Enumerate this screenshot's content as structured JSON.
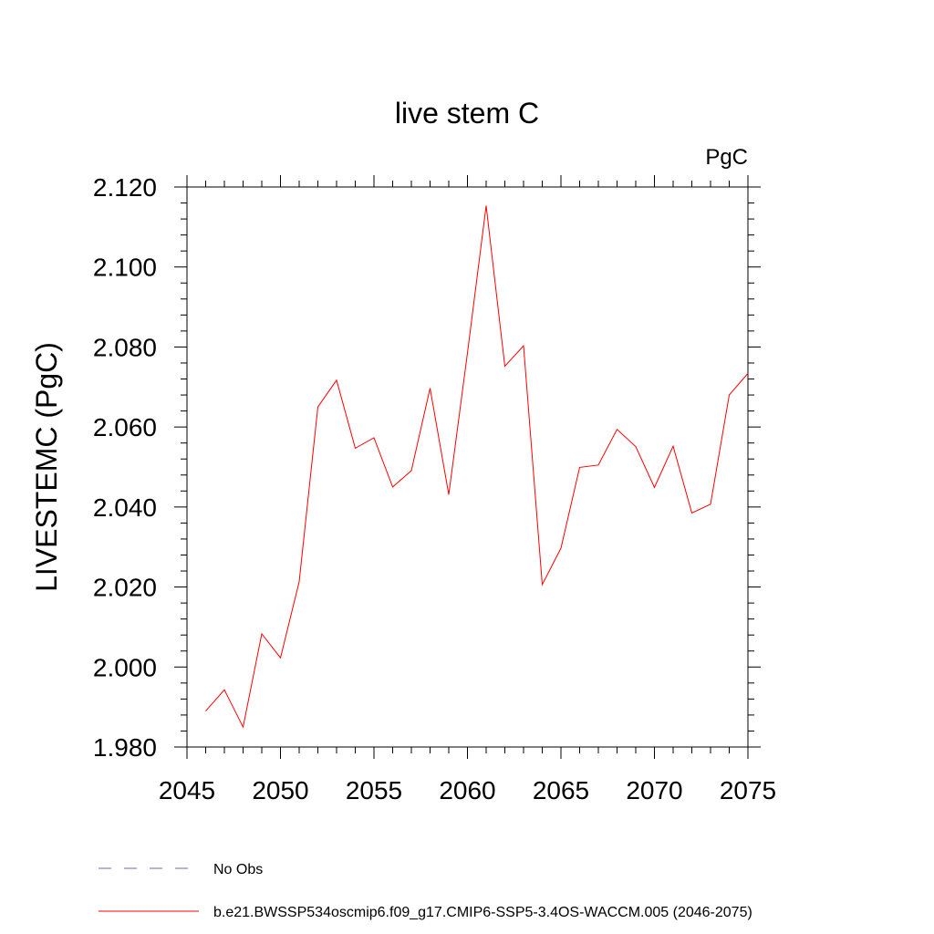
{
  "chart_data": {
    "type": "line",
    "title": "live stem C",
    "units": "PgC",
    "ylabel": "LIVESTEMC  (PgC)",
    "xlabel": "",
    "xlim": [
      2045,
      2075
    ],
    "ylim": [
      1.98,
      2.12
    ],
    "xticks": [
      2045,
      2050,
      2055,
      2060,
      2065,
      2070,
      2075
    ],
    "xtick_labels": [
      "2045",
      "2050",
      "2055",
      "2060",
      "2065",
      "2070",
      "2075"
    ],
    "yticks": [
      1.98,
      2.0,
      2.02,
      2.04,
      2.06,
      2.08,
      2.1,
      2.12
    ],
    "ytick_labels": [
      "1.980",
      "2.000",
      "2.020",
      "2.040",
      "2.060",
      "2.080",
      "2.100",
      "2.120"
    ],
    "grid": false,
    "series": [
      {
        "name": "b.e21.BWSSP534oscmip6.f09_g17.CMIP6-SSP5-3.4OS-WACCM.005 (2046-2075)",
        "color": "#ff0000",
        "x": [
          2046,
          2047,
          2048,
          2049,
          2050,
          2051,
          2052,
          2053,
          2054,
          2055,
          2056,
          2057,
          2058,
          2059,
          2060,
          2061,
          2062,
          2063,
          2064,
          2065,
          2066,
          2067,
          2068,
          2069,
          2070,
          2071,
          2072,
          2073,
          2074,
          2075
        ],
        "values": [
          1.989,
          1.9943,
          1.985,
          2.0083,
          2.0023,
          2.0213,
          2.065,
          2.0717,
          2.0547,
          2.0573,
          2.045,
          2.0491,
          2.0697,
          2.0431,
          2.0785,
          2.1153,
          2.0752,
          2.0803,
          2.0206,
          2.0297,
          2.0499,
          2.0505,
          2.0594,
          2.0551,
          2.0449,
          2.0552,
          2.0385,
          2.0407,
          2.068,
          2.0734
        ]
      }
    ],
    "legend": {
      "position": "bottom",
      "entries": [
        {
          "label": "No Obs",
          "style": "dashed",
          "color": "#6f6aa8"
        },
        {
          "label": "b.e21.BWSSP534oscmip6.f09_g17.CMIP6-SSP5-3.4OS-WACCM.005 (2046-2075)",
          "style": "solid",
          "color": "#ff0000"
        }
      ]
    }
  }
}
